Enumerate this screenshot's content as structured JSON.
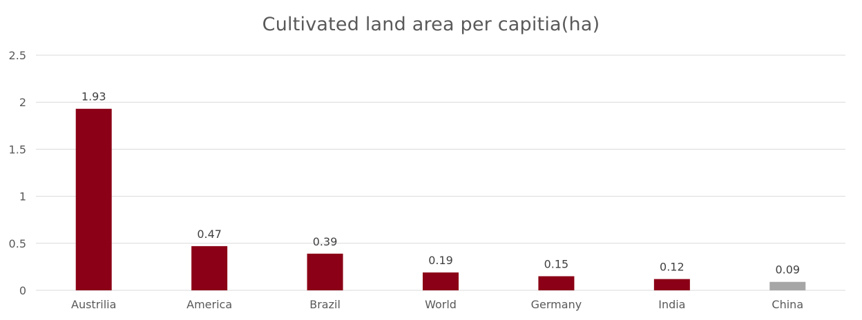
{
  "chart_data": {
    "type": "bar",
    "title": "Cultivated land area per capitia(ha)",
    "xlabel": "",
    "ylabel": "",
    "categories": [
      "Austrilia",
      "America",
      "Brazil",
      "World",
      "Germany",
      "India",
      "China"
    ],
    "values": [
      1.93,
      0.47,
      0.39,
      0.19,
      0.15,
      0.12,
      0.09
    ],
    "data_labels": [
      "1.93",
      "0.47",
      "0.39",
      "0.19",
      "0.15",
      "0.12",
      "0.09"
    ],
    "ylim": [
      0,
      2.5
    ],
    "yticks": [
      0,
      0.5,
      1,
      1.5,
      2,
      2.5
    ],
    "ytick_labels": [
      "0",
      "0.5",
      "1",
      "1.5",
      "2",
      "2.5"
    ],
    "grid": true,
    "legend": "none",
    "colors": {
      "bar": "#8b0016",
      "highlight_bar": "#a6a6a6",
      "highlight_category": "China",
      "grid": "#d9d9d9",
      "text": "#595959"
    }
  }
}
